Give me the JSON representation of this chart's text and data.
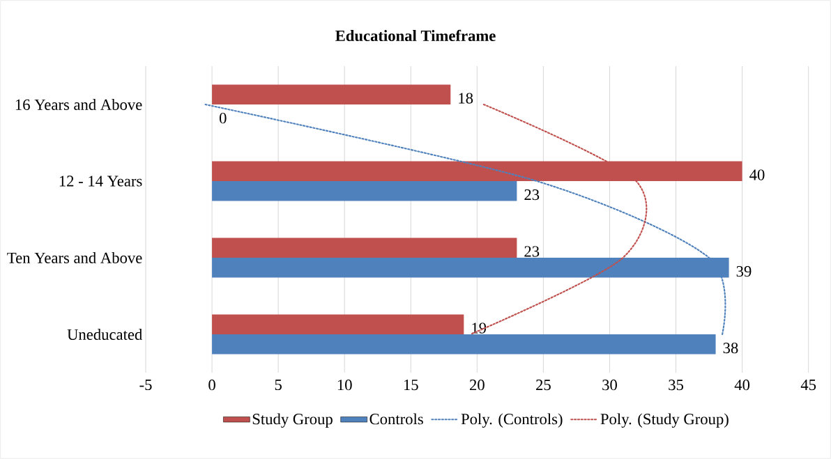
{
  "chart_data": {
    "type": "bar",
    "orientation": "horizontal",
    "title": "Educational Timeframe",
    "categories": [
      "16 Years and Above",
      "12 - 14 Years",
      "Ten Years and Above",
      "Uneducated"
    ],
    "series": [
      {
        "name": "Study Group",
        "color": "#c0504d",
        "values": [
          18,
          40,
          23,
          19
        ],
        "value_labels": [
          "18",
          "40",
          "23",
          "19"
        ]
      },
      {
        "name": "Controls",
        "color": "#4f81bd",
        "values": [
          0,
          23,
          39,
          38
        ],
        "value_labels": [
          "0",
          "23",
          "39",
          "38"
        ]
      },
      {
        "name": "Poly. (Controls)",
        "type": "line",
        "line_style": "dotted",
        "color": "#4f81bd",
        "values": [
          -0.5,
          24.5,
          37.5,
          38.5
        ]
      },
      {
        "name": "Poly. (Study Group)",
        "type": "line",
        "line_style": "dotted",
        "color": "#c0504d",
        "values": [
          20.5,
          32,
          31,
          19.5
        ]
      }
    ],
    "xlim": [
      -5,
      45
    ],
    "xticks": [
      -5,
      0,
      5,
      10,
      15,
      20,
      25,
      30,
      35,
      40,
      45
    ],
    "grid": "x",
    "legend": "bottom"
  }
}
